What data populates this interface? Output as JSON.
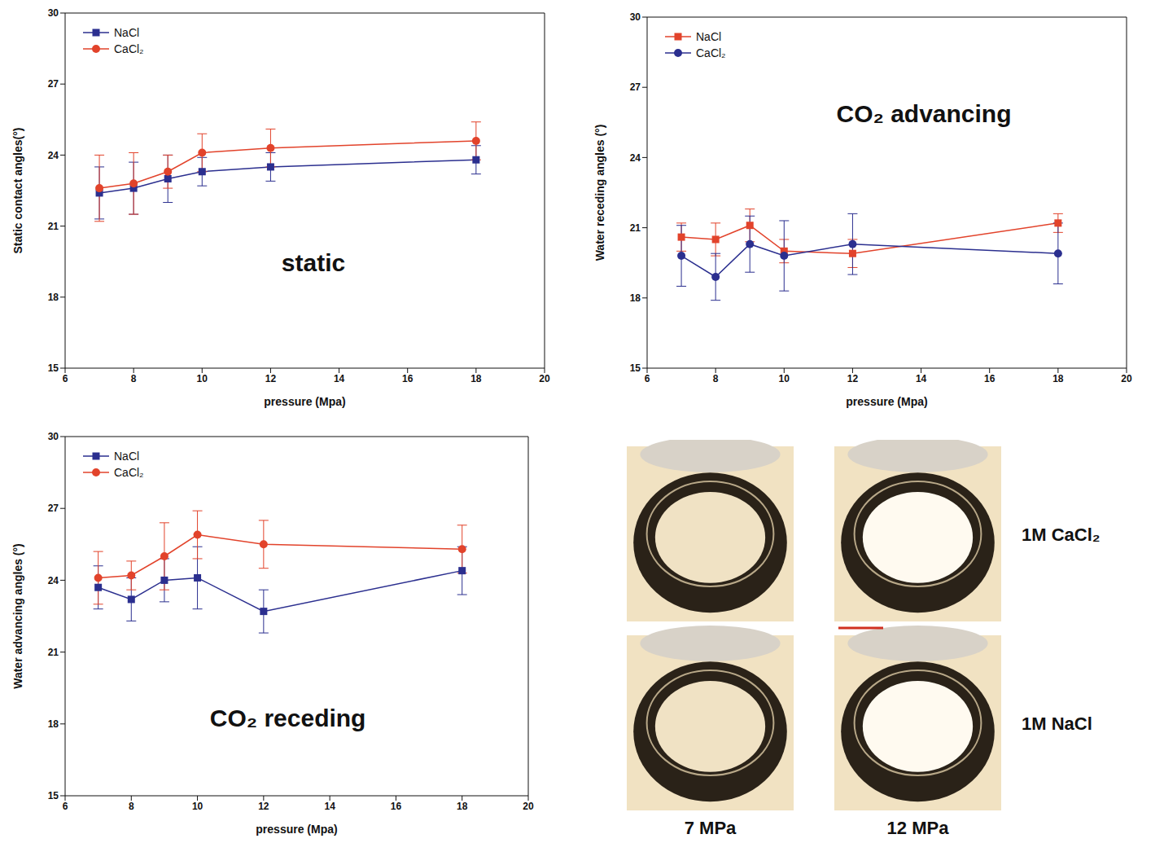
{
  "chart_data": [
    {
      "type": "line",
      "title": "static",
      "x_label": "pressure (Mpa)",
      "y_label": "Static contact angles(°)",
      "x": [
        7,
        8,
        9,
        10,
        12,
        18
      ],
      "xlim": [
        6,
        20
      ],
      "xticks": [
        6,
        8,
        10,
        12,
        14,
        16,
        18,
        20
      ],
      "ylim": [
        15,
        30
      ],
      "yticks": [
        15,
        18,
        21,
        24,
        27,
        30
      ],
      "grid": false,
      "legend": "upper left",
      "series": [
        {
          "name": "NaCl",
          "color": "#2b2f8f",
          "marker": "square",
          "values": [
            22.4,
            22.6,
            23.0,
            23.3,
            23.5,
            23.8
          ],
          "errors": [
            1.1,
            1.1,
            1.0,
            0.6,
            0.6,
            0.6
          ]
        },
        {
          "name": "CaCl₂",
          "color": "#e2432b",
          "marker": "circle",
          "values": [
            22.6,
            22.8,
            23.3,
            24.1,
            24.3,
            24.6
          ],
          "errors": [
            1.4,
            1.3,
            0.7,
            0.8,
            0.8,
            0.8
          ]
        }
      ]
    },
    {
      "type": "line",
      "title": "CO₂ advancing",
      "x_label": "pressure (Mpa)",
      "y_label": "Water receding angles (°)",
      "x": [
        7,
        8,
        9,
        10,
        12,
        18
      ],
      "xlim": [
        6,
        20
      ],
      "xticks": [
        6,
        8,
        10,
        12,
        14,
        16,
        18,
        20
      ],
      "ylim": [
        15,
        30
      ],
      "yticks": [
        15,
        18,
        21,
        24,
        27,
        30
      ],
      "grid": false,
      "legend": "upper left",
      "series": [
        {
          "name": "NaCl",
          "color": "#e2432b",
          "marker": "square",
          "values": [
            20.6,
            20.5,
            21.1,
            20.0,
            19.9,
            21.2
          ],
          "errors": [
            0.6,
            0.7,
            0.7,
            0.5,
            0.6,
            0.4
          ]
        },
        {
          "name": "CaCl₂",
          "color": "#2b2f8f",
          "marker": "circle",
          "values": [
            19.8,
            18.9,
            20.3,
            19.8,
            20.3,
            19.9
          ],
          "errors": [
            1.3,
            1.0,
            1.2,
            1.5,
            1.3,
            1.3
          ]
        }
      ]
    },
    {
      "type": "line",
      "title": "CO₂ receding",
      "x_label": "pressure (Mpa)",
      "y_label": "Water advancing angles (°)",
      "x": [
        7,
        8,
        9,
        10,
        12,
        18
      ],
      "xlim": [
        6,
        20
      ],
      "xticks": [
        6,
        8,
        10,
        12,
        14,
        16,
        18,
        20
      ],
      "ylim": [
        15,
        30
      ],
      "yticks": [
        15,
        18,
        21,
        24,
        27,
        30
      ],
      "grid": false,
      "legend": "upper left",
      "series": [
        {
          "name": "NaCl",
          "color": "#2b2f8f",
          "marker": "square",
          "values": [
            23.7,
            23.2,
            24.0,
            24.1,
            22.7,
            24.4
          ],
          "errors": [
            0.9,
            0.9,
            0.9,
            1.3,
            0.9,
            1.0
          ]
        },
        {
          "name": "CaCl₂",
          "color": "#e2432b",
          "marker": "circle",
          "values": [
            24.1,
            24.2,
            25.0,
            25.9,
            25.5,
            25.3
          ],
          "errors": [
            1.1,
            0.6,
            1.4,
            1.0,
            1.0,
            1.0
          ]
        }
      ]
    }
  ],
  "image_panel": {
    "row_labels": [
      "1M CaCl₂",
      "1M NaCl"
    ],
    "column_labels": [
      "7 MPa",
      "12 MPa"
    ]
  }
}
